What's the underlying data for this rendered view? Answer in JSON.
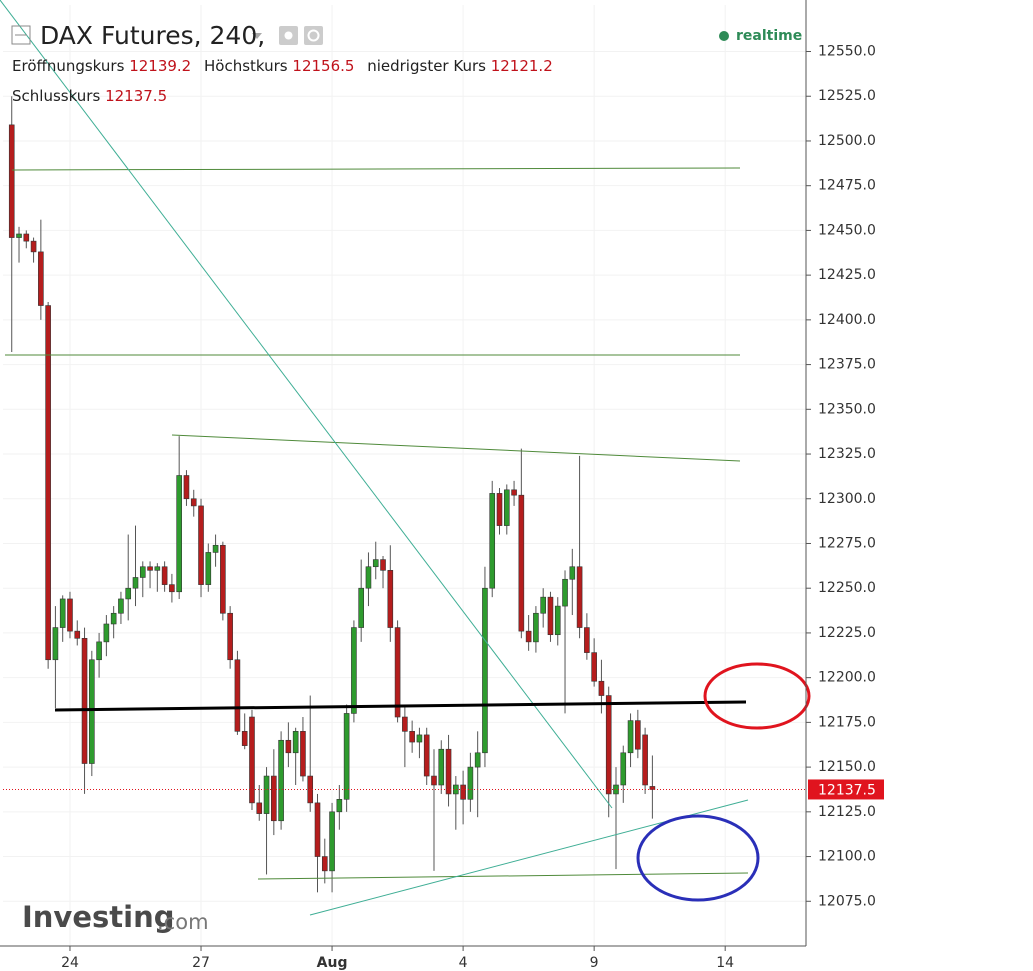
{
  "chart_data": {
    "type": "candlestick",
    "title": "DAX Futures, 240,",
    "status": "realtime",
    "open_label": "Eröffnungskurs",
    "high_label": "Höchstkurs",
    "low_label": "niedrigster Kurs",
    "close_label": "Schlusskurs",
    "brand": "Investing",
    "brand_suffix": ".com",
    "up_color": "#2e9b2e",
    "down_color": "#b51d1d",
    "grid": true,
    "x": [
      0,
      1,
      2,
      3,
      4,
      5,
      6,
      7,
      8,
      9,
      10,
      11,
      12,
      13,
      14,
      15,
      16,
      17,
      18,
      19,
      20,
      21,
      22,
      23,
      24,
      25,
      26,
      27,
      28,
      29,
      30,
      31,
      32,
      33,
      34,
      35,
      36,
      37,
      38,
      39,
      40,
      41,
      42,
      43,
      44,
      45,
      46,
      47,
      48,
      49,
      50,
      51,
      52,
      53,
      54,
      55,
      56,
      57,
      58,
      59,
      60,
      61,
      62,
      63,
      64,
      65,
      66,
      67,
      68,
      69,
      70,
      71,
      72,
      73,
      74,
      75,
      76,
      77,
      78,
      79,
      80,
      81,
      82,
      83,
      84,
      85,
      86,
      87,
      88
    ],
    "open": [
      12509,
      12446,
      12448,
      12444,
      12438,
      12408,
      12210,
      12228,
      12244,
      12226,
      12222,
      12152,
      12210,
      12220,
      12230,
      12236,
      12244,
      12250,
      12256,
      12262,
      12260,
      12262,
      12252,
      12248,
      12313,
      12300,
      12296,
      12252,
      12270,
      12274,
      12236,
      12210,
      12170,
      12178,
      12130,
      12124,
      12145,
      12120,
      12165,
      12158,
      12170,
      12145,
      12130,
      12100,
      12092,
      12125,
      12132,
      12180,
      12228,
      12250,
      12262,
      12266,
      12260,
      12228,
      12178,
      12170,
      12164,
      12168,
      12145,
      12140,
      12160,
      12135,
      12140,
      12132,
      12150,
      12158,
      12250,
      12303,
      12285,
      12305,
      12302,
      12226,
      12220,
      12236,
      12245,
      12224,
      12240,
      12255,
      12262,
      12228,
      12214,
      12198,
      12190,
      12135,
      12140,
      12158,
      12176,
      12168,
      12139.2
    ],
    "high": [
      12525,
      12452,
      12450,
      12446,
      12456,
      12410,
      12240,
      12246,
      12248,
      12232,
      12228,
      12215,
      12225,
      12235,
      12240,
      12248,
      12280,
      12285,
      12265,
      12265,
      12264,
      12265,
      12258,
      12335,
      12316,
      12305,
      12300,
      12275,
      12280,
      12276,
      12240,
      12215,
      12180,
      12182,
      12140,
      12150,
      12160,
      12170,
      12175,
      12172,
      12178,
      12190,
      12135,
      12110,
      12130,
      12140,
      12185,
      12232,
      12266,
      12270,
      12276,
      12268,
      12274,
      12232,
      12185,
      12176,
      12172,
      12172,
      12160,
      12165,
      12168,
      12145,
      12148,
      12158,
      12170,
      12262,
      12310,
      12306,
      12308,
      12310,
      12328,
      12235,
      12240,
      12250,
      12248,
      12245,
      12260,
      12272,
      12324,
      12236,
      12222,
      12210,
      12195,
      12150,
      12162,
      12180,
      12182,
      12172,
      12156.5
    ],
    "low": [
      12382,
      12432,
      12440,
      12432,
      12400,
      12205,
      12183,
      12220,
      12222,
      12218,
      12135,
      12145,
      12200,
      12212,
      12222,
      12230,
      12232,
      12240,
      12245,
      12250,
      12248,
      12248,
      12242,
      12244,
      12296,
      12290,
      12245,
      12248,
      12262,
      12232,
      12205,
      12168,
      12160,
      12126,
      12120,
      12090,
      12112,
      12115,
      12150,
      12140,
      12142,
      12125,
      12080,
      12085,
      12080,
      12115,
      12125,
      12175,
      12220,
      12240,
      12255,
      12250,
      12220,
      12175,
      12150,
      12158,
      12155,
      12140,
      12092,
      12135,
      12128,
      12115,
      12118,
      12125,
      12122,
      12150,
      12245,
      12280,
      12280,
      12296,
      12222,
      12215,
      12214,
      12228,
      12220,
      12218,
      12180,
      12235,
      12222,
      12210,
      12195,
      12180,
      12122,
      12093,
      12130,
      12150,
      12155,
      12135,
      12121.2
    ],
    "close": [
      12446,
      12448,
      12444,
      12438,
      12408,
      12210,
      12228,
      12244,
      12226,
      12222,
      12152,
      12210,
      12220,
      12230,
      12236,
      12244,
      12250,
      12256,
      12262,
      12260,
      12262,
      12252,
      12248,
      12313,
      12300,
      12296,
      12252,
      12270,
      12274,
      12236,
      12210,
      12170,
      12162,
      12130,
      12124,
      12145,
      12120,
      12165,
      12158,
      12170,
      12145,
      12130,
      12100,
      12092,
      12125,
      12132,
      12180,
      12228,
      12250,
      12262,
      12266,
      12260,
      12228,
      12178,
      12170,
      12164,
      12168,
      12145,
      12140,
      12160,
      12135,
      12140,
      12132,
      12150,
      12158,
      12250,
      12303,
      12285,
      12305,
      12302,
      12226,
      12220,
      12236,
      12245,
      12224,
      12240,
      12255,
      12262,
      12228,
      12214,
      12198,
      12190,
      12135,
      12140,
      12158,
      12176,
      12160,
      12140,
      12137.5
    ],
    "xlim": [
      -1.2,
      109.1
    ],
    "xticks": [
      {
        "value": 8,
        "label": "24"
      },
      {
        "value": 26,
        "label": "27"
      },
      {
        "value": 44,
        "label": "Aug"
      },
      {
        "value": 62,
        "label": "4"
      },
      {
        "value": 80,
        "label": "9"
      },
      {
        "value": 98,
        "label": "14"
      }
    ],
    "ylim": [
      12050,
      12576
    ],
    "yticks": [
      {
        "value": 12075,
        "label": "12075.0"
      },
      {
        "value": 12100,
        "label": "12100.0"
      },
      {
        "value": 12125,
        "label": "12125.0"
      },
      {
        "value": 12150,
        "label": "12150.0"
      },
      {
        "value": 12175,
        "label": "12175.0"
      },
      {
        "value": 12200,
        "label": "12200.0"
      },
      {
        "value": 12225,
        "label": "12225.0"
      },
      {
        "value": 12250,
        "label": "12250.0"
      },
      {
        "value": 12275,
        "label": "12275.0"
      },
      {
        "value": 12300,
        "label": "12300.0"
      },
      {
        "value": 12325,
        "label": "12325.0"
      },
      {
        "value": 12350,
        "label": "12350.0"
      },
      {
        "value": 12375,
        "label": "12375.0"
      },
      {
        "value": 12400,
        "label": "12400.0"
      },
      {
        "value": 12425,
        "label": "12425.0"
      },
      {
        "value": 12450,
        "label": "12450.0"
      },
      {
        "value": 12475,
        "label": "12475.0"
      },
      {
        "value": 12500,
        "label": "12500.0"
      },
      {
        "value": 12525,
        "label": "12525.0"
      },
      {
        "value": 12550,
        "label": "12550.0"
      }
    ]
  }
}
